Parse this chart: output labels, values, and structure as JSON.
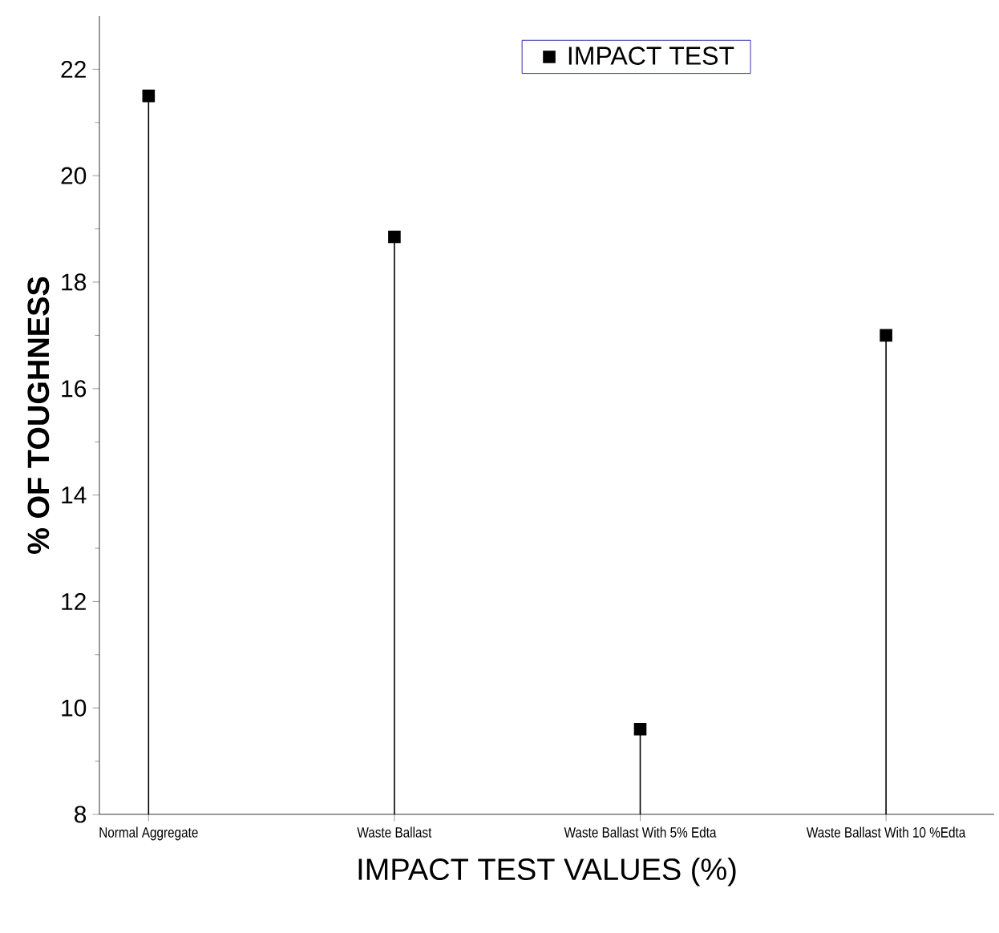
{
  "chart_data": {
    "type": "lollipop",
    "xlabel": "IMPACT TEST  VALUES (%)",
    "ylabel": "% OF TOUGHNESS",
    "categories": [
      "Normal Aggregate",
      "Waste Ballast",
      "Waste Ballast With 5% Edta",
      "Waste Ballast With  10 %Edta"
    ],
    "series": [
      {
        "name": "IMPACT TEST",
        "color": "#000000",
        "values": [
          21.5,
          18.85,
          9.6,
          17.0
        ]
      }
    ],
    "ylim": [
      8,
      23
    ],
    "yticks": [
      8,
      10,
      12,
      14,
      16,
      18,
      20,
      22
    ],
    "marker": "square",
    "legend": "top"
  }
}
